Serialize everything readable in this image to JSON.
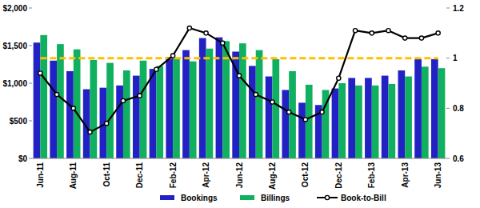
{
  "chart_data": {
    "type": "bar",
    "categories": [
      "Jun-11",
      null,
      "Aug-11",
      null,
      "Oct-11",
      null,
      "Dec-11",
      null,
      "Feb-12",
      null,
      "Apr-12",
      null,
      "Jun-12",
      null,
      "Aug-12",
      null,
      "Oct-12",
      null,
      "Dec-12",
      null,
      "Feb-13",
      null,
      "Apr-13",
      null,
      "Jun-13"
    ],
    "series": [
      {
        "name": "Bookings",
        "type": "bar",
        "color": "#2222c4",
        "values": [
          1540,
          1300,
          1160,
          920,
          940,
          970,
          1100,
          1190,
          1350,
          1440,
          1600,
          1610,
          1420,
          1230,
          1090,
          910,
          740,
          710,
          930,
          1070,
          1070,
          1100,
          1170,
          1320,
          1320
        ]
      },
      {
        "name": "Billings",
        "type": "bar",
        "color": "#10b060",
        "values": [
          1640,
          1520,
          1450,
          1310,
          1270,
          1170,
          1300,
          1230,
          1330,
          1290,
          1460,
          1560,
          1530,
          1440,
          1320,
          1160,
          980,
          910,
          1000,
          970,
          970,
          990,
          1090,
          1220,
          1200
        ]
      },
      {
        "name": "Book-to-Bill",
        "type": "line",
        "axis": "y2",
        "color": "#000000",
        "marker": "circle",
        "values": [
          0.94,
          0.855,
          0.8,
          0.705,
          0.74,
          0.83,
          0.85,
          0.955,
          1.01,
          1.12,
          1.1,
          1.06,
          0.93,
          0.855,
          0.825,
          0.785,
          0.755,
          0.785,
          0.92,
          1.11,
          1.1,
          1.11,
          1.08,
          1.08,
          1.1
        ]
      },
      {
        "type": "line",
        "axis": "y2",
        "color": "#ffc000",
        "line_style": "dashed",
        "values": [
          1,
          1,
          1,
          1,
          1,
          1,
          1,
          1,
          1,
          1,
          1,
          1,
          1,
          1,
          1,
          1,
          1,
          1,
          1,
          1,
          1,
          1,
          1,
          1,
          1
        ]
      }
    ],
    "ylim": [
      0,
      2000
    ],
    "yticks": [
      {
        "value": 0,
        "label": "$0"
      },
      {
        "value": 500,
        "label": "$500"
      },
      {
        "value": 1000,
        "label": "$1,000"
      },
      {
        "value": 1500,
        "label": "$1,500"
      },
      {
        "value": 2000,
        "label": "$2,000"
      }
    ],
    "y2lim": [
      0.6,
      1.2
    ],
    "y2ticks": [
      0.6,
      0.8,
      1,
      1.2
    ],
    "grid": false,
    "legend": "bottom"
  }
}
